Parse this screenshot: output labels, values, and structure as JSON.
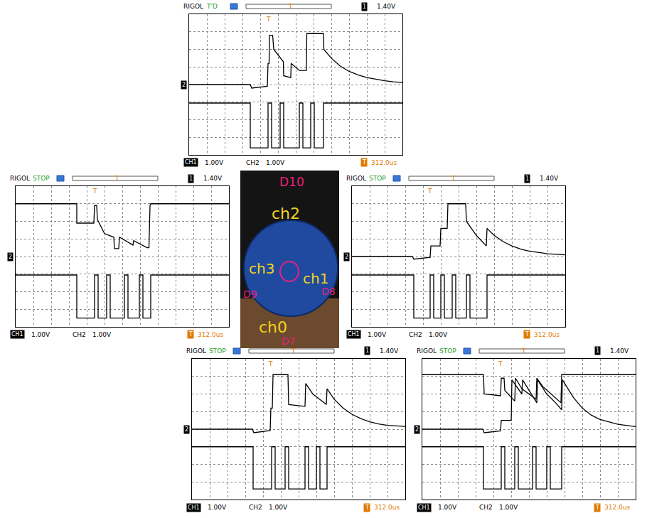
{
  "chart_data": [
    {
      "type": "line",
      "brand": "RIGOL",
      "status": "T'D",
      "trigger_channel": "1",
      "trigger_level": "1.40V",
      "time_offset": "312.0us",
      "trigger_marker": "T",
      "trigger_x": 4.44,
      "ref_marker": {
        "label": "2",
        "y": 0
      },
      "xlim": [
        0,
        12
      ],
      "ylim": [
        -4,
        4
      ],
      "xticks": [
        0,
        1,
        2,
        3,
        4,
        5,
        6,
        7,
        8,
        9,
        10,
        11,
        12
      ],
      "yticks": [
        -4,
        -3,
        -2,
        -1,
        0,
        1,
        2,
        3,
        4
      ],
      "grid": true,
      "tick_labels": false,
      "channels": [
        {
          "name": "CH1",
          "scale": "1.00V"
        },
        {
          "name": "CH2",
          "scale": "1.00V"
        }
      ],
      "series": [
        {
          "name": "CH2",
          "color": "#000000",
          "x": [
            0,
            3.44,
            3.52,
            4.4,
            4.44,
            4.5,
            4.52,
            4.7,
            4.76,
            5.3,
            5.32,
            5.72,
            5.74,
            6.2,
            6.6,
            6.62,
            7.56,
            7.58,
            8.0,
            8.5,
            9.0,
            9.5,
            10,
            10.5,
            11,
            11.5,
            12
          ],
          "values": [
            0,
            0,
            -0.2,
            -0.1,
            1.2,
            1.2,
            2.8,
            2.8,
            2.0,
            1.3,
            0.5,
            0.4,
            1.2,
            0.8,
            0.8,
            2.9,
            2.9,
            2.0,
            1.5,
            1.05,
            0.75,
            0.55,
            0.4,
            0.3,
            0.22,
            0.16,
            0.12
          ]
        },
        {
          "name": "CH1",
          "color": "#000000",
          "x": [
            0,
            3.44,
            3.44,
            4.44,
            4.44,
            4.64,
            4.64,
            5.12,
            5.12,
            5.32,
            5.32,
            6.2,
            6.2,
            6.4,
            6.4,
            6.84,
            6.84,
            7.04,
            7.04,
            7.56,
            7.56,
            12
          ],
          "values": [
            -1.05,
            -1.05,
            -3.6,
            -3.6,
            -1.05,
            -1.05,
            -3.6,
            -3.6,
            -1.05,
            -1.05,
            -3.6,
            -3.6,
            -1.05,
            -1.05,
            -3.6,
            -3.6,
            -1.05,
            -1.05,
            -3.6,
            -3.6,
            -1.05,
            -1.05
          ]
        }
      ]
    },
    {
      "type": "line",
      "brand": "RIGOL",
      "status": "STOP",
      "trigger_channel": "1",
      "trigger_level": "1.40V",
      "time_offset": "312.0us",
      "trigger_marker": "T",
      "trigger_x": 4.44,
      "ref_marker": {
        "label": "2",
        "y": 0
      },
      "xlim": [
        0,
        12
      ],
      "ylim": [
        -4,
        4
      ],
      "xticks": [
        0,
        1,
        2,
        3,
        4,
        5,
        6,
        7,
        8,
        9,
        10,
        11,
        12
      ],
      "yticks": [
        -4,
        -3,
        -2,
        -1,
        0,
        1,
        2,
        3,
        4
      ],
      "grid": true,
      "tick_labels": false,
      "channels": [
        {
          "name": "CH1",
          "scale": "1.00V"
        },
        {
          "name": "CH2",
          "scale": "1.00V"
        }
      ],
      "series": [
        {
          "name": "CH2",
          "color": "#000000",
          "x": [
            0,
            3.44,
            3.44,
            4.4,
            4.44,
            4.56,
            4.6,
            5.0,
            5.52,
            5.56,
            5.8,
            5.84,
            6.6,
            6.64,
            7.4,
            7.5,
            7.56,
            7.6,
            12
          ],
          "values": [
            3.0,
            3.0,
            1.9,
            1.9,
            2.9,
            2.9,
            2.1,
            1.3,
            1.1,
            0.45,
            0.45,
            1.1,
            0.65,
            0.9,
            0.5,
            0.5,
            2.9,
            3.0,
            3.0
          ]
        },
        {
          "name": "CH1",
          "color": "#000000",
          "x": [
            0,
            3.44,
            3.44,
            4.44,
            4.44,
            4.64,
            4.64,
            5.12,
            5.12,
            5.32,
            5.32,
            6.12,
            6.12,
            6.32,
            6.32,
            6.96,
            6.96,
            7.16,
            7.16,
            7.6,
            7.6,
            12
          ],
          "values": [
            -1.05,
            -1.05,
            -3.5,
            -3.5,
            -1.05,
            -1.05,
            -3.5,
            -3.5,
            -1.05,
            -1.05,
            -3.5,
            -3.5,
            -1.05,
            -1.05,
            -3.5,
            -3.5,
            -1.05,
            -1.05,
            -3.5,
            -3.5,
            -1.05,
            -1.05
          ]
        }
      ]
    },
    {
      "type": "line",
      "brand": "RIGOL",
      "status": "STOP",
      "trigger_channel": "1",
      "trigger_level": "1.40V",
      "time_offset": "312.0us",
      "trigger_marker": "T",
      "trigger_x": 4.36,
      "ref_marker": {
        "label": "2",
        "y": 0
      },
      "xlim": [
        0,
        12
      ],
      "ylim": [
        -4,
        4
      ],
      "xticks": [
        0,
        1,
        2,
        3,
        4,
        5,
        6,
        7,
        8,
        9,
        10,
        11,
        12
      ],
      "yticks": [
        -4,
        -3,
        -2,
        -1,
        0,
        1,
        2,
        3,
        4
      ],
      "grid": true,
      "tick_labels": false,
      "channels": [
        {
          "name": "CH1",
          "scale": "1.00V"
        },
        {
          "name": "CH2",
          "scale": "1.00V"
        }
      ],
      "series": [
        {
          "name": "CH2",
          "color": "#000000",
          "x": [
            0,
            3.4,
            3.48,
            4.4,
            4.44,
            4.96,
            5.0,
            5.36,
            5.4,
            6.4,
            6.44,
            7.0,
            7.56,
            7.6,
            8.0,
            8.5,
            9,
            9.5,
            10,
            10.5,
            11,
            12
          ],
          "values": [
            0,
            0,
            -0.15,
            -0.05,
            0.6,
            0.6,
            1.6,
            1.6,
            3.0,
            3.0,
            2.0,
            1.2,
            0.6,
            1.6,
            1.2,
            0.85,
            0.6,
            0.42,
            0.3,
            0.22,
            0.16,
            0.1
          ]
        },
        {
          "name": "CH1",
          "color": "#000000",
          "x": [
            0,
            3.48,
            3.48,
            4.4,
            4.4,
            4.6,
            4.6,
            5.0,
            5.0,
            5.2,
            5.2,
            5.64,
            5.64,
            5.84,
            5.84,
            6.44,
            6.44,
            6.64,
            6.64,
            7.6,
            7.6,
            12
          ],
          "values": [
            -1.05,
            -1.05,
            -3.5,
            -3.5,
            -1.05,
            -1.05,
            -3.5,
            -3.5,
            -1.05,
            -1.05,
            -3.5,
            -3.5,
            -1.05,
            -1.05,
            -3.5,
            -3.5,
            -1.05,
            -1.05,
            -3.5,
            -3.5,
            -1.05,
            -1.05
          ]
        }
      ]
    },
    {
      "type": "line",
      "brand": "RIGOL",
      "status": "STOP",
      "trigger_channel": "1",
      "trigger_level": "1.40V",
      "time_offset": "312.0us",
      "trigger_marker": "T",
      "trigger_x": 4.4,
      "ref_marker": {
        "label": "2",
        "y": 0
      },
      "xlim": [
        0,
        12
      ],
      "ylim": [
        -4,
        4
      ],
      "xticks": [
        0,
        1,
        2,
        3,
        4,
        5,
        6,
        7,
        8,
        9,
        10,
        11,
        12
      ],
      "yticks": [
        -4,
        -3,
        -2,
        -1,
        0,
        1,
        2,
        3,
        4
      ],
      "grid": true,
      "tick_labels": false,
      "channels": [
        {
          "name": "CH1",
          "scale": "1.00V"
        },
        {
          "name": "CH2",
          "scale": "1.00V"
        }
      ],
      "series": [
        {
          "name": "CH2",
          "color": "#000000",
          "x": [
            0,
            3.4,
            3.48,
            4.4,
            4.44,
            4.52,
            4.56,
            5.4,
            5.44,
            6.36,
            6.4,
            6.8,
            7.56,
            7.6,
            8.0,
            8.5,
            9,
            9.5,
            10,
            10.5,
            11,
            12
          ],
          "values": [
            0,
            0,
            -0.2,
            -0.08,
            1.2,
            1.2,
            3.1,
            3.1,
            1.4,
            1.3,
            2.6,
            2.0,
            1.4,
            2.3,
            1.7,
            1.2,
            0.85,
            0.6,
            0.42,
            0.3,
            0.22,
            0.16
          ]
        },
        {
          "name": "CH1",
          "color": "#000000",
          "x": [
            0,
            3.44,
            3.44,
            4.48,
            4.48,
            4.68,
            4.68,
            5.24,
            5.24,
            5.44,
            5.44,
            6.36,
            6.36,
            6.56,
            6.56,
            7.0,
            7.0,
            7.2,
            7.2,
            7.6,
            7.6,
            12
          ],
          "values": [
            -1.0,
            -1.0,
            -3.4,
            -3.4,
            -1.0,
            -1.0,
            -3.4,
            -3.4,
            -1.0,
            -1.0,
            -3.4,
            -3.4,
            -1.0,
            -1.0,
            -3.4,
            -3.4,
            -1.0,
            -1.0,
            -3.4,
            -3.4,
            -1.0,
            -1.0
          ]
        }
      ]
    },
    {
      "type": "line",
      "brand": "RIGOL",
      "status": "STOP",
      "trigger_channel": "1",
      "trigger_level": "1.40V",
      "time_offset": "312.0us",
      "trigger_marker": "T",
      "trigger_x": 4.36,
      "ref_marker": {
        "label": "2",
        "y": 0
      },
      "xlim": [
        0,
        12
      ],
      "ylim": [
        -4,
        4
      ],
      "xticks": [
        0,
        1,
        2,
        3,
        4,
        5,
        6,
        7,
        8,
        9,
        10,
        11,
        12
      ],
      "yticks": [
        -4,
        -3,
        -2,
        -1,
        0,
        1,
        2,
        3,
        4
      ],
      "grid": true,
      "tick_labels": false,
      "channels": [
        {
          "name": "CH1",
          "scale": "1.00V"
        },
        {
          "name": "CH2",
          "scale": "1.00V"
        }
      ],
      "series": [
        {
          "name": "CH2",
          "color": "#000000",
          "x": [
            0,
            3.44,
            3.48,
            4.4,
            4.44,
            4.6,
            4.64,
            5.2,
            5.24,
            5.6,
            6.4,
            6.44,
            6.8,
            7.8,
            7.84,
            12
          ],
          "values": [
            3.1,
            3.1,
            2.0,
            1.9,
            2.9,
            2.9,
            2.2,
            1.6,
            2.9,
            2.3,
            1.7,
            2.9,
            2.4,
            1.5,
            3.1,
            3.1
          ]
        },
        {
          "name": "CH2",
          "color": "#000000",
          "x": [
            0,
            3.4,
            3.48,
            4.4,
            4.44,
            5.0,
            5.04,
            5.6,
            5.64,
            6.0,
            6.44,
            6.48,
            7.0,
            7.5,
            7.84,
            7.88,
            8.5,
            9,
            9.5,
            10,
            10.5,
            11,
            12
          ],
          "values": [
            0,
            0,
            -0.2,
            -0.1,
            0.5,
            0.5,
            2.8,
            2.0,
            2.8,
            2.2,
            1.5,
            2.8,
            2.0,
            1.5,
            1.1,
            2.8,
            1.8,
            1.2,
            0.8,
            0.55,
            0.4,
            0.28,
            0.15
          ]
        },
        {
          "name": "CH1",
          "color": "#000000",
          "x": [
            0,
            3.44,
            3.44,
            4.44,
            4.44,
            4.64,
            4.64,
            5.2,
            5.2,
            5.4,
            5.4,
            6.2,
            6.2,
            6.4,
            6.4,
            7.0,
            7.0,
            7.2,
            7.2,
            7.84,
            7.84,
            12
          ],
          "values": [
            -1.0,
            -1.0,
            -3.4,
            -3.4,
            -1.0,
            -1.0,
            -3.4,
            -3.4,
            -1.0,
            -1.0,
            -3.4,
            -3.4,
            -1.0,
            -1.0,
            -3.4,
            -3.4,
            -1.0,
            -1.0,
            -3.4,
            -3.4,
            -1.0,
            -1.0
          ]
        }
      ]
    }
  ],
  "photo": {
    "labels": [
      {
        "text": "D10",
        "color": "#e8207a"
      },
      {
        "text": "ch2",
        "color": "#f2d21b"
      },
      {
        "text": "ch3",
        "color": "#f2d21b"
      },
      {
        "text": "D9",
        "color": "#e8207a"
      },
      {
        "text": "ch1",
        "color": "#f2d21b"
      },
      {
        "text": "D8",
        "color": "#e8207a"
      },
      {
        "text": "ch0",
        "color": "#f2d21b"
      },
      {
        "text": "D7",
        "color": "#e8207a"
      }
    ]
  }
}
